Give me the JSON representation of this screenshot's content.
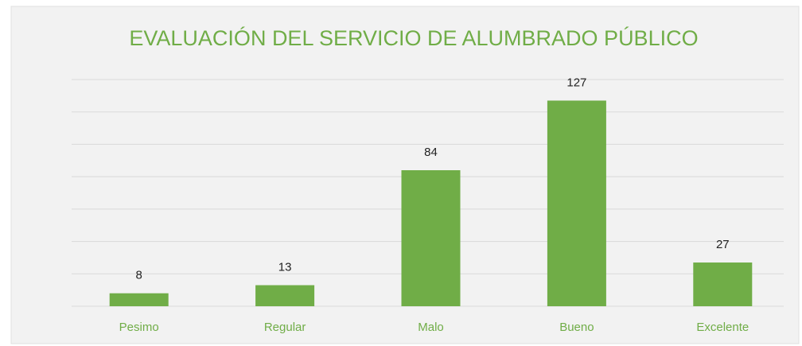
{
  "chart_data": {
    "type": "bar",
    "title": "EVALUACIÓN DEL SERVICIO DE ALUMBRADO PÚBLICO",
    "categories": [
      "Pesimo",
      "Regular",
      "Malo",
      "Bueno",
      "Excelente"
    ],
    "values": [
      8,
      13,
      84,
      127,
      27
    ],
    "color": "#70ad47",
    "ylim": [
      0,
      140
    ],
    "yticks": [
      0,
      20,
      40,
      60,
      80,
      100,
      120,
      140
    ],
    "grid": true
  }
}
